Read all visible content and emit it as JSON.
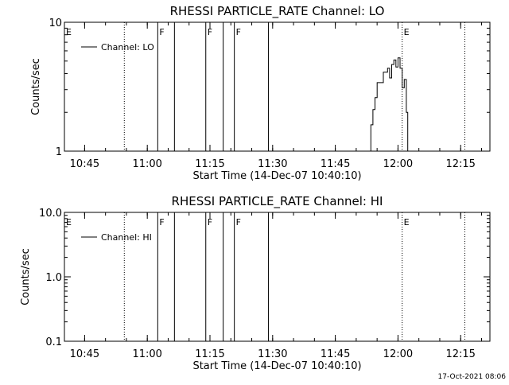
{
  "footer": {
    "timestamp": "17-Oct-2021 08:06"
  },
  "chart_data": [
    {
      "type": "line",
      "title": "RHESSI PARTICLE_RATE Channel: LO",
      "xlabel": "Start Time (14-Dec-07 10:40:10)",
      "ylabel": "Counts/sec",
      "yscale": "log",
      "xlim": [
        "10:40:10",
        "12:22:00"
      ],
      "ylim": [
        1,
        10
      ],
      "xticks": [
        "10:45",
        "11:00",
        "11:15",
        "11:30",
        "11:45",
        "12:00",
        "12:15"
      ],
      "yticks": [
        {
          "value": 1,
          "label": "1"
        },
        {
          "value": 10,
          "label": "10"
        }
      ],
      "legend": {
        "entry": "Channel: LO",
        "placement": "top-left"
      },
      "flag_lines": [
        {
          "time": "10:40:10",
          "style": "dotted",
          "label": "E"
        },
        {
          "time": "10:54:30",
          "style": "dotted",
          "label": ""
        },
        {
          "time": "11:02:30",
          "style": "solid",
          "label": "F"
        },
        {
          "time": "11:06:30",
          "style": "solid",
          "label": ""
        },
        {
          "time": "11:14:00",
          "style": "solid",
          "label": "F"
        },
        {
          "time": "11:18:10",
          "style": "solid",
          "label": ""
        },
        {
          "time": "11:20:50",
          "style": "solid",
          "label": "F"
        },
        {
          "time": "11:29:00",
          "style": "solid",
          "label": ""
        },
        {
          "time": "12:01:00",
          "style": "dotted",
          "label": "E"
        },
        {
          "time": "12:16:00",
          "style": "dotted",
          "label": ""
        }
      ],
      "series": [
        {
          "name": "Channel: LO",
          "x": [
            "11:53:00",
            "11:53:30",
            "11:54:00",
            "11:54:30",
            "11:55:00",
            "11:55:30",
            "11:56:00",
            "11:56:30",
            "11:57:00",
            "11:57:30",
            "11:58:00",
            "11:58:30",
            "11:59:00",
            "11:59:30",
            "12:00:00",
            "12:00:30",
            "12:01:00",
            "12:01:30",
            "12:02:00",
            "12:02:20"
          ],
          "y": [
            1.0,
            1.6,
            2.1,
            2.6,
            3.4,
            3.4,
            3.4,
            4.1,
            4.1,
            4.4,
            3.7,
            4.7,
            5.1,
            4.5,
            5.3,
            4.4,
            3.1,
            3.6,
            2.0,
            1.0
          ]
        }
      ]
    },
    {
      "type": "line",
      "title": "RHESSI PARTICLE_RATE Channel: HI",
      "xlabel": "Start Time (14-Dec-07 10:40:10)",
      "ylabel": "Counts/sec",
      "yscale": "log",
      "xlim": [
        "10:40:10",
        "12:22:00"
      ],
      "ylim": [
        0.1,
        10
      ],
      "xticks": [
        "10:45",
        "11:00",
        "11:15",
        "11:30",
        "11:45",
        "12:00",
        "12:15"
      ],
      "yticks": [
        {
          "value": 0.1,
          "label": "0.1"
        },
        {
          "value": 1,
          "label": "1.0"
        },
        {
          "value": 10,
          "label": "10.0"
        }
      ],
      "legend": {
        "entry": "Channel: HI",
        "placement": "top-left"
      },
      "flag_lines": [
        {
          "time": "10:40:10",
          "style": "dotted",
          "label": "E"
        },
        {
          "time": "10:54:30",
          "style": "dotted",
          "label": ""
        },
        {
          "time": "11:02:30",
          "style": "solid",
          "label": "F"
        },
        {
          "time": "11:06:30",
          "style": "solid",
          "label": ""
        },
        {
          "time": "11:14:00",
          "style": "solid",
          "label": "F"
        },
        {
          "time": "11:18:10",
          "style": "solid",
          "label": ""
        },
        {
          "time": "11:20:50",
          "style": "solid",
          "label": "F"
        },
        {
          "time": "11:29:00",
          "style": "solid",
          "label": ""
        },
        {
          "time": "12:01:00",
          "style": "dotted",
          "label": "E"
        },
        {
          "time": "12:16:00",
          "style": "dotted",
          "label": ""
        }
      ],
      "series": [
        {
          "name": "Channel: HI",
          "x": [],
          "y": []
        }
      ]
    }
  ]
}
